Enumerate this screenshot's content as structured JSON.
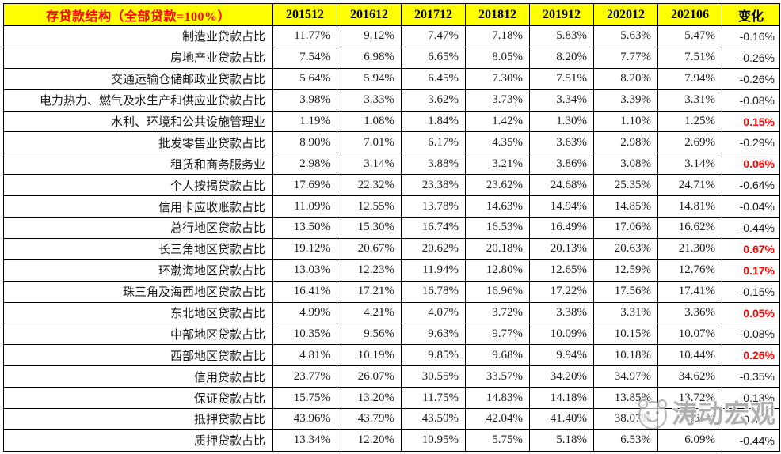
{
  "chart_data": {
    "type": "table",
    "title": "存贷款结构（全部贷款=100%）",
    "columns": [
      "201512",
      "201612",
      "201712",
      "201812",
      "201912",
      "202012",
      "202106",
      "变化"
    ],
    "rows": [
      {
        "label": "制造业贷款占比",
        "values": [
          "11.77%",
          "9.12%",
          "7.47%",
          "7.18%",
          "5.83%",
          "5.63%",
          "5.47%"
        ],
        "change": "-0.16%",
        "highlight": false
      },
      {
        "label": "房地产业贷款占比",
        "values": [
          "7.54%",
          "6.98%",
          "6.65%",
          "8.05%",
          "8.20%",
          "7.77%",
          "7.51%"
        ],
        "change": "-0.26%",
        "highlight": false
      },
      {
        "label": "交通运输仓储邮政业贷款占比",
        "values": [
          "5.64%",
          "5.94%",
          "6.45%",
          "7.30%",
          "7.51%",
          "8.20%",
          "7.94%"
        ],
        "change": "-0.26%",
        "highlight": false
      },
      {
        "label": "电力热力、燃气及水生产和供应业贷款占比",
        "values": [
          "3.98%",
          "3.33%",
          "3.62%",
          "3.73%",
          "3.34%",
          "3.39%",
          "3.31%"
        ],
        "change": "-0.08%",
        "highlight": false
      },
      {
        "label": "水利、环境和公共设施管理业",
        "values": [
          "1.19%",
          "1.08%",
          "1.84%",
          "1.42%",
          "1.30%",
          "1.10%",
          "1.25%"
        ],
        "change": "0.15%",
        "highlight": true
      },
      {
        "label": "批发零售业贷款占比",
        "values": [
          "8.90%",
          "7.01%",
          "6.17%",
          "4.35%",
          "3.63%",
          "2.98%",
          "2.69%"
        ],
        "change": "-0.29%",
        "highlight": false
      },
      {
        "label": "租赁和商务服务业",
        "values": [
          "2.98%",
          "3.14%",
          "3.88%",
          "3.21%",
          "3.86%",
          "3.08%",
          "3.14%"
        ],
        "change": "0.06%",
        "highlight": true
      },
      {
        "label": "个人按揭贷款占比",
        "values": [
          "17.69%",
          "22.32%",
          "23.38%",
          "23.62%",
          "24.68%",
          "25.35%",
          "24.71%"
        ],
        "change": "-0.64%",
        "highlight": false
      },
      {
        "label": "信用卡应收账款占比",
        "values": [
          "11.09%",
          "12.55%",
          "13.78%",
          "14.63%",
          "14.94%",
          "14.85%",
          "14.81%"
        ],
        "change": "-0.04%",
        "highlight": false
      },
      {
        "label": "总行地区贷款占比",
        "values": [
          "13.50%",
          "15.30%",
          "16.74%",
          "16.53%",
          "16.49%",
          "17.06%",
          "16.62%"
        ],
        "change": "-0.44%",
        "highlight": false
      },
      {
        "label": "长三角地区贷款占比",
        "values": [
          "19.12%",
          "20.67%",
          "20.62%",
          "20.18%",
          "20.13%",
          "20.63%",
          "21.30%"
        ],
        "change": "0.67%",
        "highlight": true
      },
      {
        "label": "环渤海地区贷款占比",
        "values": [
          "13.03%",
          "12.23%",
          "11.94%",
          "12.80%",
          "12.65%",
          "12.59%",
          "12.76%"
        ],
        "change": "0.17%",
        "highlight": true
      },
      {
        "label": "珠三角及海西地区贷款占比",
        "values": [
          "16.41%",
          "17.21%",
          "16.78%",
          "16.96%",
          "17.22%",
          "17.56%",
          "17.41%"
        ],
        "change": "-0.15%",
        "highlight": false
      },
      {
        "label": "东北地区贷款占比",
        "values": [
          "4.99%",
          "4.21%",
          "4.07%",
          "3.72%",
          "3.38%",
          "3.31%",
          "3.36%"
        ],
        "change": "0.05%",
        "highlight": true
      },
      {
        "label": "中部地区贷款占比",
        "values": [
          "10.35%",
          "9.56%",
          "9.63%",
          "9.77%",
          "10.09%",
          "10.15%",
          "10.07%"
        ],
        "change": "-0.08%",
        "highlight": false
      },
      {
        "label": "西部地区贷款占比",
        "values": [
          "4.81%",
          "10.19%",
          "9.85%",
          "9.68%",
          "9.94%",
          "10.18%",
          "10.44%"
        ],
        "change": "0.26%",
        "highlight": true
      },
      {
        "label": "信用贷款占比",
        "values": [
          "23.77%",
          "26.07%",
          "30.55%",
          "33.57%",
          "34.20%",
          "34.97%",
          "34.62%"
        ],
        "change": "-0.35%",
        "highlight": false
      },
      {
        "label": "保证贷款占比",
        "values": [
          "15.75%",
          "13.20%",
          "11.75%",
          "14.83%",
          "14.18%",
          "13.85%",
          "13.72%"
        ],
        "change": "-0.13%",
        "highlight": false
      },
      {
        "label": "抵押贷款占比",
        "values": [
          "43.96%",
          "43.79%",
          "43.50%",
          "42.04%",
          "41.40%",
          "38.07%",
          "37.65%"
        ],
        "change": "-0.42%",
        "highlight": false
      },
      {
        "label": "质押贷款占比",
        "values": [
          "13.34%",
          "12.20%",
          "10.95%",
          "5.75%",
          "5.18%",
          "6.53%",
          "6.09%"
        ],
        "change": "-0.44%",
        "highlight": false
      }
    ],
    "layout": {
      "header_bg": "#FFFF00",
      "title_color": "#FF0000",
      "positive_change_color": "#FF0000",
      "grid": "on",
      "value_alignment": "right"
    }
  },
  "watermark": {
    "text": "涛动宏观"
  }
}
